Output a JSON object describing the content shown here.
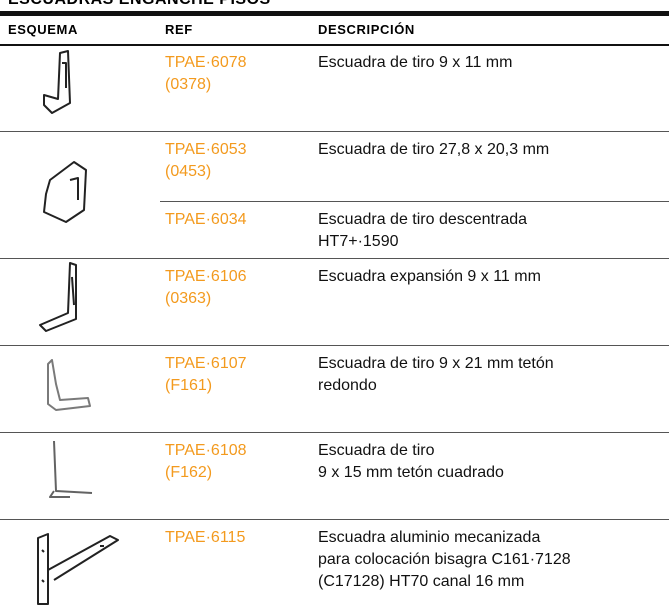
{
  "header": {
    "title": "ESCUADRAS ENGANCHE PISOS"
  },
  "table": {
    "columns": [
      "ESQUEMA",
      "REF",
      "DESCRIPCIÓN"
    ],
    "groups": [
      {
        "items": [
          {
            "ref": [
              "TPAE·6078",
              "(0378)"
            ],
            "description": [
              "Escuadra de tiro 9 x 11 mm"
            ]
          }
        ]
      },
      {
        "items": [
          {
            "ref": [
              "TPAE·6053",
              "(0453)"
            ],
            "description": [
              "Escuadra de tiro 27,8 x 20,3 mm"
            ]
          },
          {
            "ref": [
              "TPAE·6034"
            ],
            "description": [
              "Escuadra de tiro descentrada",
              "HT7+·1590"
            ]
          }
        ]
      },
      {
        "items": [
          {
            "ref": [
              "TPAE·6106",
              "(0363)"
            ],
            "description": [
              "Escuadra expansión 9 x 11 mm"
            ]
          }
        ]
      },
      {
        "items": [
          {
            "ref": [
              "TPAE·6107",
              "(F161)"
            ],
            "description": [
              "Escuadra de tiro 9 x 21 mm tetón",
              "redondo"
            ]
          }
        ]
      },
      {
        "items": [
          {
            "ref": [
              "TPAE·6108",
              "(F162)"
            ],
            "description": [
              "Escuadra de tiro",
              "9 x 15 mm tetón cuadrado"
            ]
          }
        ]
      },
      {
        "items": [
          {
            "ref": [
              "TPAE·6115"
            ],
            "description": [
              "Escuadra aluminio mecanizada",
              "para colocación bisagra C161·7128",
              "(C17128) HT70 canal 16 mm"
            ]
          }
        ]
      }
    ]
  }
}
